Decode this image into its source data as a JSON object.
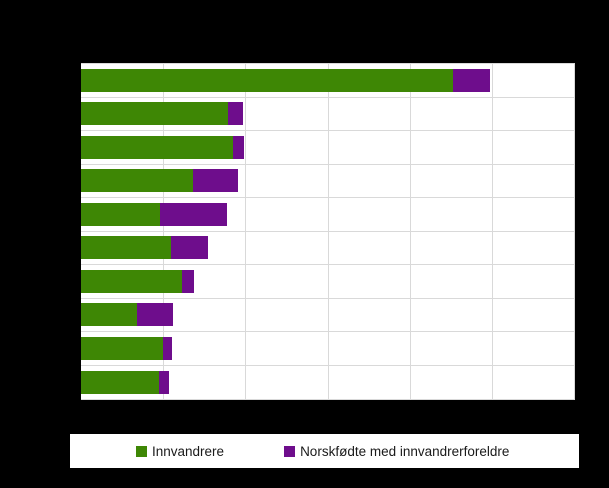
{
  "figure": {
    "background": "#000000",
    "plot_background": "#ffffff",
    "gridline_color": "#d9d9d9",
    "legend_background": "#ffffff",
    "legend_text_color": "#1a1a1a"
  },
  "legend": {
    "items": [
      {
        "label": "Innvandrere",
        "color": "#3e8705"
      },
      {
        "label": "Norskfødte med innvandrerforeldre",
        "color": "#6e0d8c"
      }
    ]
  },
  "chart_data": {
    "type": "bar",
    "orientation": "horizontal",
    "stacked": true,
    "title": "",
    "xlabel": "",
    "ylabel": "",
    "categories": [
      "",
      "",
      "",
      "",
      "",
      "",
      "",
      "",
      "",
      ""
    ],
    "series": [
      {
        "name": "Innvandrere",
        "color": "#3e8705",
        "values": [
          90600,
          35900,
          37100,
          27200,
          19200,
          21900,
          24500,
          13600,
          19900,
          19000
        ]
      },
      {
        "name": "Norskfødte med innvandrerforeldre",
        "color": "#6e0d8c",
        "values": [
          8900,
          3500,
          2700,
          10900,
          16400,
          8900,
          3000,
          8700,
          2200,
          2400
        ]
      }
    ],
    "xlim": [
      0,
      120000
    ],
    "x_gridline_interval": 20000,
    "grid": "on",
    "legend_position": "bottom",
    "values_note": "Title, category labels and axis tick labels are not visible in the image (black-on-black); values estimated from bar lengths relative to unlabeled gridlines (6 equal intervals)."
  }
}
